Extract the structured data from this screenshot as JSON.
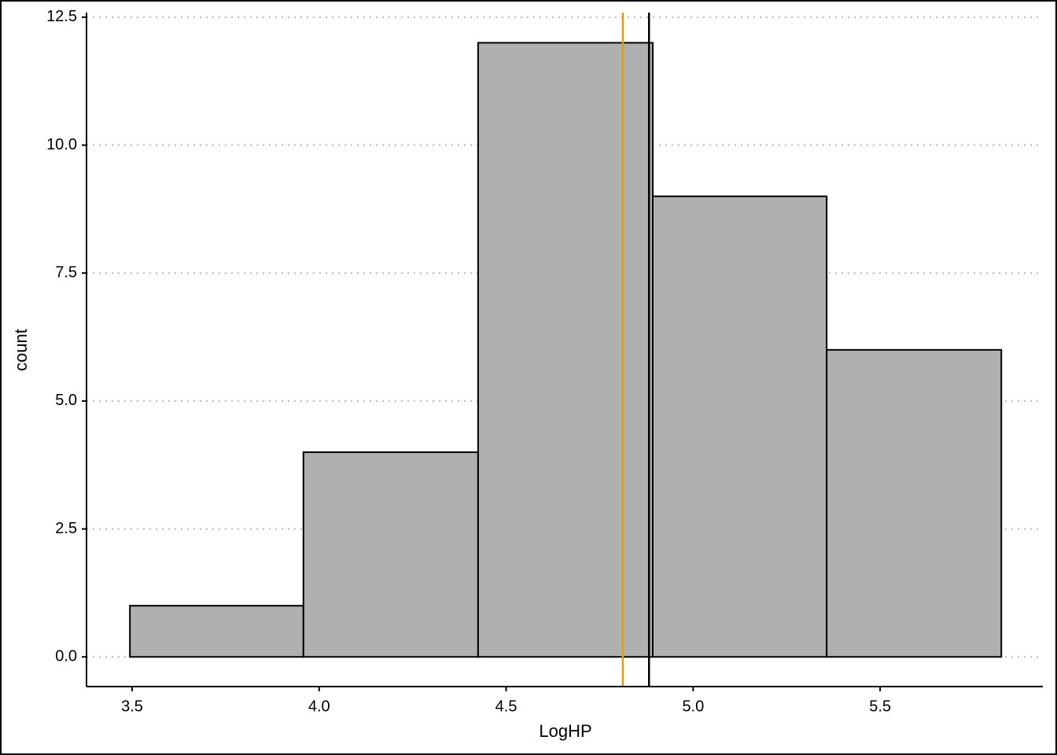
{
  "chart_data": {
    "type": "histogram",
    "x_label": "LogHP",
    "y_label": "count",
    "bins": [
      3.494,
      3.958,
      4.425,
      4.892,
      5.357,
      5.824
    ],
    "values": [
      1,
      4,
      12,
      9,
      6
    ],
    "color": "#b0b0b0",
    "edge_color": "#000000",
    "vlines": [
      {
        "x": 4.812,
        "color": "#e69f00"
      },
      {
        "x": 4.882,
        "color": "#000000"
      }
    ],
    "xlim": [
      3.378,
      5.935
    ],
    "xticks": [
      3.5,
      {
        "value": 4,
        "label": "4.0"
      },
      4.5,
      {
        "value": 5,
        "label": "5.0"
      },
      5.5
    ],
    "ylim": [
      -0.58,
      12.59
    ],
    "yticks": [
      {
        "value": 0,
        "label": "0.0"
      },
      2.5,
      {
        "value": 5,
        "label": "5.0"
      },
      7.5,
      {
        "value": 10,
        "label": "10.0"
      },
      12.5
    ],
    "grid": true
  }
}
